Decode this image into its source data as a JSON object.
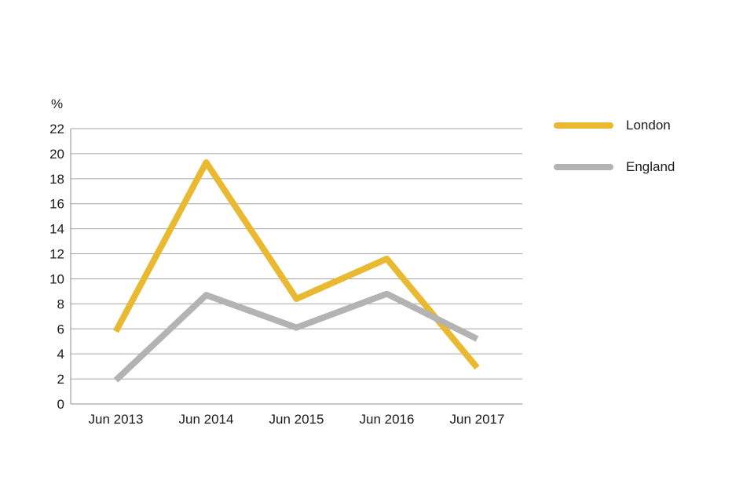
{
  "chart_data": {
    "type": "line",
    "y_unit": "%",
    "categories": [
      "Jun 2013",
      "Jun 2014",
      "Jun 2015",
      "Jun 2016",
      "Jun 2017"
    ],
    "ylim": [
      0,
      22
    ],
    "yticks": [
      "0",
      "2",
      "4",
      "6",
      "8",
      "10",
      "12",
      "14",
      "16",
      "18",
      "20",
      "22"
    ],
    "grid": true,
    "legend_position": "right",
    "series": [
      {
        "name": "London",
        "color": "#E8B931",
        "values": [
          5.8,
          19.3,
          8.4,
          11.6,
          2.9
        ]
      },
      {
        "name": "England",
        "color": "#B3B3B3",
        "values": [
          1.9,
          8.7,
          6.1,
          8.8,
          5.2
        ]
      }
    ]
  }
}
